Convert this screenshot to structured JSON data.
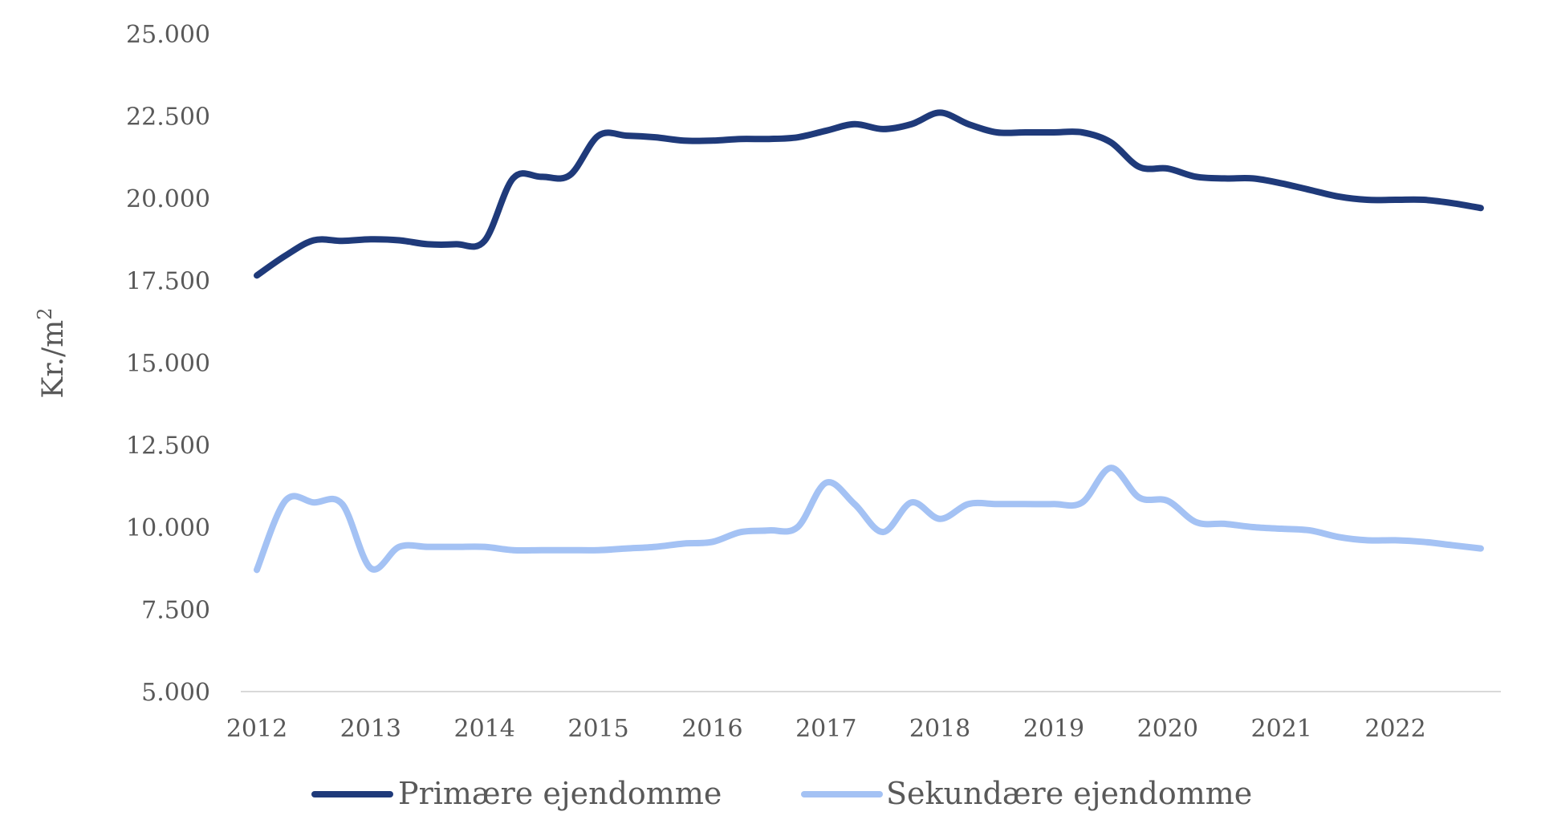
{
  "chart_data": {
    "type": "line",
    "title": "",
    "xlabel": "",
    "ylabel": "Kr./m",
    "ylabel_sup": "2",
    "ylim": [
      5000,
      25000
    ],
    "yticks": [
      5000,
      7500,
      10000,
      12500,
      15000,
      17500,
      20000,
      22500,
      25000
    ],
    "ytick_labels": [
      "5.000",
      "7.500",
      "10.000",
      "12.500",
      "15.000",
      "17.500",
      "20.000",
      "22.500",
      "25.000"
    ],
    "xlim": [
      2012,
      2022.8
    ],
    "xticks": [
      2012,
      2013,
      2014,
      2015,
      2016,
      2017,
      2018,
      2019,
      2020,
      2021,
      2022
    ],
    "xtick_labels": [
      "2012",
      "2013",
      "2014",
      "2015",
      "2016",
      "2017",
      "2018",
      "2019",
      "2020",
      "2021",
      "2022"
    ],
    "grid": false,
    "legend_position": "bottom",
    "series": [
      {
        "name": "Primære ejendomme",
        "color": "#1f3a7a",
        "x": [
          2012,
          2012.25,
          2012.5,
          2012.75,
          2013,
          2013.25,
          2013.5,
          2013.75,
          2014,
          2014.25,
          2014.5,
          2014.75,
          2015,
          2015.25,
          2015.5,
          2015.75,
          2016,
          2016.25,
          2016.5,
          2016.75,
          2017,
          2017.25,
          2017.5,
          2017.75,
          2018,
          2018.25,
          2018.5,
          2018.75,
          2019,
          2019.25,
          2019.5,
          2019.75,
          2020,
          2020.25,
          2020.5,
          2020.75,
          2021,
          2021.25,
          2021.5,
          2021.75,
          2022,
          2022.25,
          2022.5,
          2022.75
        ],
        "values": [
          17650,
          18250,
          18720,
          18700,
          18750,
          18720,
          18600,
          18600,
          18700,
          20600,
          20650,
          20700,
          21900,
          21900,
          21850,
          21750,
          21750,
          21800,
          21800,
          21850,
          22050,
          22250,
          22100,
          22250,
          22600,
          22250,
          22000,
          22000,
          22000,
          22000,
          21700,
          20950,
          20900,
          20650,
          20600,
          20600,
          20450,
          20250,
          20050,
          19950,
          19950,
          19950,
          19850,
          19700
        ]
      },
      {
        "name": "Sekundære ejendomme",
        "color": "#a4c2f4",
        "x": [
          2012,
          2012.25,
          2012.5,
          2012.75,
          2013,
          2013.25,
          2013.5,
          2013.75,
          2014,
          2014.25,
          2014.5,
          2014.75,
          2015,
          2015.25,
          2015.5,
          2015.75,
          2016,
          2016.25,
          2016.5,
          2016.75,
          2017,
          2017.25,
          2017.5,
          2017.75,
          2018,
          2018.25,
          2018.5,
          2018.75,
          2019,
          2019.25,
          2019.5,
          2019.75,
          2020,
          2020.25,
          2020.5,
          2020.75,
          2021,
          2021.25,
          2021.5,
          2021.75,
          2022,
          2022.25,
          2022.5,
          2022.75
        ],
        "values": [
          8700,
          10800,
          10750,
          10700,
          8750,
          9400,
          9400,
          9400,
          9400,
          9300,
          9300,
          9300,
          9300,
          9350,
          9400,
          9500,
          9550,
          9850,
          9900,
          10000,
          11350,
          10700,
          9850,
          10750,
          10250,
          10700,
          10700,
          10700,
          10700,
          10750,
          11800,
          10900,
          10800,
          10150,
          10100,
          10000,
          9950,
          9900,
          9700,
          9600,
          9600,
          9550,
          9450,
          9350
        ]
      }
    ]
  }
}
